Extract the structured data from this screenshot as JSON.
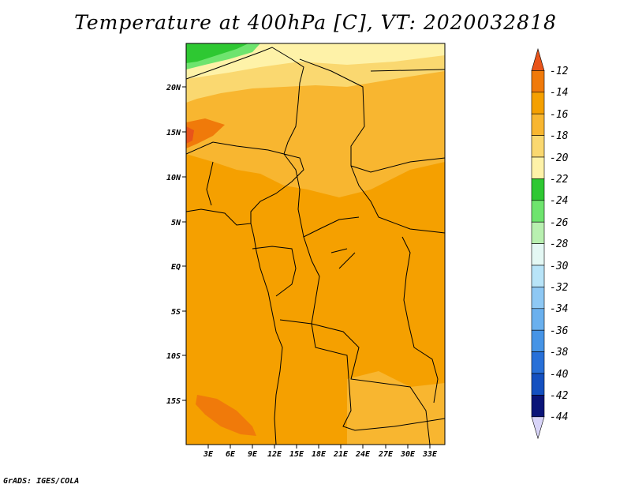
{
  "title": "Temperature at 400hPa [C], VT: 2020032818",
  "footer": "GrADS: IGES/COLA",
  "map": {
    "lat_labels": [
      "20N",
      "15N",
      "10N",
      "5N",
      "EQ",
      "5S",
      "10S",
      "15S"
    ],
    "lon_labels": [
      "3E",
      "6E",
      "9E",
      "12E",
      "15E",
      "18E",
      "21E",
      "24E",
      "27E",
      "30E",
      "33E"
    ]
  },
  "colorbar": {
    "labels": [
      "-12",
      "-14",
      "-16",
      "-18",
      "-20",
      "-22",
      "-24",
      "-26",
      "-28",
      "-30",
      "-32",
      "-34",
      "-36",
      "-38",
      "-40",
      "-42",
      "-44"
    ],
    "colors": [
      "#e8541a",
      "#f07a0a",
      "#f5a000",
      "#f8b630",
      "#fad870",
      "#fef2a8",
      "#2ec832",
      "#6ee46e",
      "#b8f0b0",
      "#e4f8f4",
      "#b8e4f8",
      "#8ec8f4",
      "#6ab0ee",
      "#4694e6",
      "#2870d8",
      "#1450c0",
      "#0a1478",
      "#d8d4f8"
    ]
  }
}
